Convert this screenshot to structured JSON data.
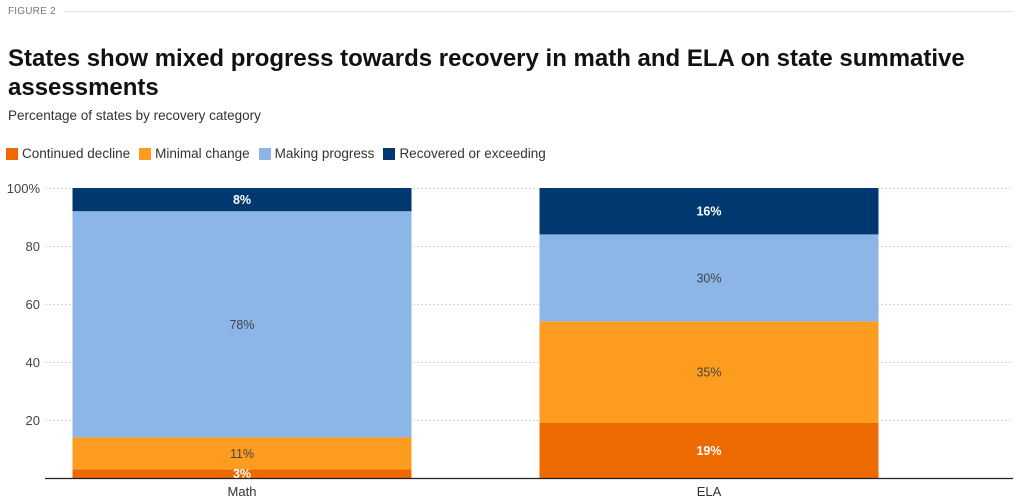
{
  "figure_label": "FIGURE 2",
  "title": "States show mixed progress towards recovery in math and ELA on state summative assessments",
  "subtitle": "Percentage of states by recovery category",
  "legend": [
    {
      "label": "Continued decline",
      "color": "#EC6A00"
    },
    {
      "label": "Minimal change",
      "color": "#FD9C1E"
    },
    {
      "label": "Making progress",
      "color": "#8BB6E7"
    },
    {
      "label": "Recovered or exceeding",
      "color": "#00386F"
    }
  ],
  "chart_data": {
    "type": "bar",
    "stacked": true,
    "orientation": "vertical",
    "title": "States show mixed progress towards recovery in math and ELA on state summative assessments",
    "subtitle": "Percentage of states by recovery category",
    "xlabel": "",
    "ylabel": "",
    "categories": [
      "Math",
      "ELA"
    ],
    "series": [
      {
        "name": "Continued decline",
        "color": "#EC6A00",
        "values": [
          3,
          19
        ],
        "labels": [
          "3%",
          "19%"
        ],
        "label_color": "#ffffff"
      },
      {
        "name": "Minimal change",
        "color": "#FD9C1E",
        "values": [
          11,
          35
        ],
        "labels": [
          "11%",
          "35%"
        ],
        "label_color": "#444444"
      },
      {
        "name": "Making progress",
        "color": "#8BB6E7",
        "values": [
          78,
          30
        ],
        "labels": [
          "78%",
          "30%"
        ],
        "label_color": "#444444"
      },
      {
        "name": "Recovered or exceeding",
        "color": "#00386F",
        "values": [
          8,
          16
        ],
        "labels": [
          "8%",
          "16%"
        ],
        "label_color": "#ffffff"
      }
    ],
    "ylim": [
      0,
      100
    ],
    "yticks": [
      {
        "value": 20,
        "label": "20"
      },
      {
        "value": 40,
        "label": "40"
      },
      {
        "value": 60,
        "label": "60"
      },
      {
        "value": 80,
        "label": "80"
      },
      {
        "value": 100,
        "label": "100%"
      }
    ],
    "grid": true,
    "legend_position": "top-left"
  }
}
